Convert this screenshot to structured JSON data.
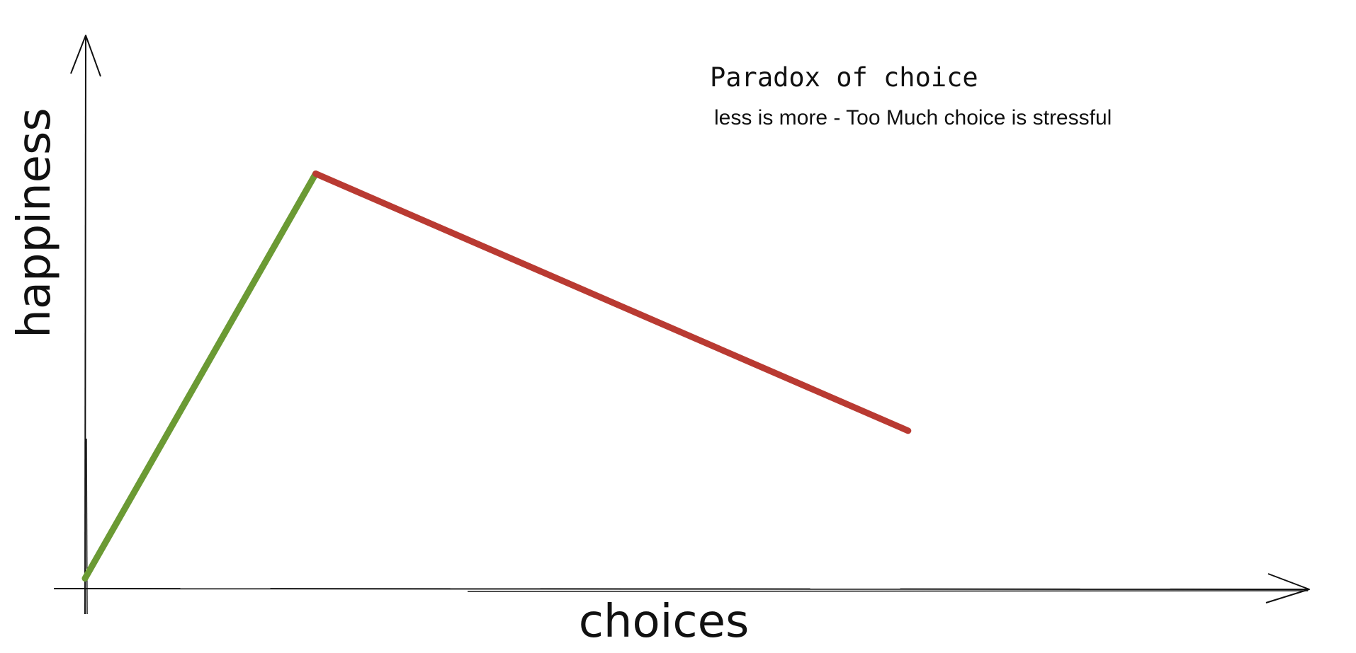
{
  "chart_data": {
    "type": "line",
    "title": "Paradox of choice",
    "subtitle": "less is more - Too Much choice is stressful",
    "xlabel": "choices",
    "ylabel": "happiness",
    "xlim": [
      0,
      10
    ],
    "ylim": [
      0,
      10
    ],
    "grid": false,
    "x": [
      0,
      2.2,
      7.85
    ],
    "y": [
      0.2,
      7.6,
      2.9
    ],
    "segments": [
      {
        "from": 0,
        "to": 1,
        "color": "#6b9a34",
        "meaning": "rising"
      },
      {
        "from": 1,
        "to": 2,
        "color": "#b93a32",
        "meaning": "falling"
      }
    ],
    "colors": {
      "axis": "#111111",
      "rising": "#6b9a34",
      "falling": "#b93a32"
    }
  }
}
